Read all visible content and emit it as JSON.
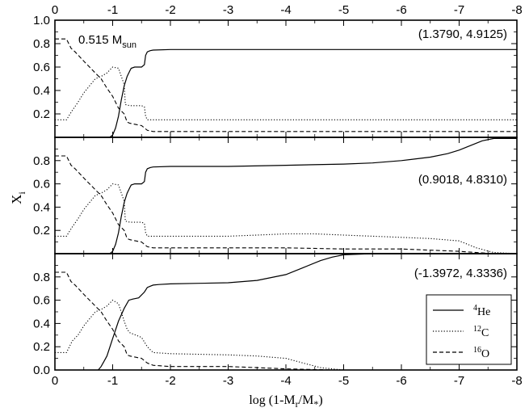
{
  "chart_data": {
    "type": "line",
    "xlabel": "log (1-M_r/M_*)",
    "ylabel": "X_i",
    "xlim": [
      0,
      -8
    ],
    "x_ticks": [
      "0",
      "-1",
      "-2",
      "-3",
      "-4",
      "-5",
      "-6",
      "-7",
      "-8"
    ],
    "top_axis_ticks": [
      "0",
      "-1",
      "-2",
      "-3",
      "-4",
      "-5",
      "-6",
      "-7",
      "-8"
    ],
    "legend": {
      "placement": "bottom-right of bottom panel",
      "entries": [
        {
          "sup": "4",
          "label": "He",
          "style": "solid"
        },
        {
          "sup": "12",
          "label": "C",
          "style": "dotted"
        },
        {
          "sup": "16",
          "label": "O",
          "style": "dashed"
        }
      ]
    },
    "panels": [
      {
        "mass_label": "0.515 M",
        "mass_label_sub": "sun",
        "annotation": "(1.3790, 4.9125)",
        "ylim": [
          0,
          1.0
        ],
        "y_ticks": [
          "1.0",
          "0.8",
          "0.6",
          "0.4",
          "0.2"
        ],
        "series": [
          {
            "name": "4He",
            "style": "solid",
            "x": [
              0.95,
              1.0,
              1.05,
              1.1,
              1.15,
              1.2,
              1.25,
              1.3,
              1.32,
              1.38,
              1.44,
              1.5,
              1.55,
              1.57,
              1.6,
              1.65,
              1.7,
              2.0,
              3.0,
              4.0,
              5.0,
              6.0,
              7.0,
              8.0
            ],
            "y": [
              0.0,
              0.02,
              0.08,
              0.18,
              0.32,
              0.44,
              0.52,
              0.57,
              0.59,
              0.6,
              0.6,
              0.6,
              0.62,
              0.7,
              0.73,
              0.74,
              0.745,
              0.75,
              0.75,
              0.75,
              0.75,
              0.75,
              0.75,
              0.75
            ]
          },
          {
            "name": "12C",
            "style": "dotted",
            "x": [
              0.0,
              0.2,
              0.3,
              0.4,
              0.5,
              0.6,
              0.7,
              0.8,
              0.9,
              1.0,
              1.1,
              1.2,
              1.22,
              1.3,
              1.4,
              1.5,
              1.55,
              1.57,
              1.6,
              1.7,
              2.0,
              3.0,
              4.0,
              5.0,
              6.0,
              7.0,
              8.0
            ],
            "y": [
              0.15,
              0.15,
              0.23,
              0.3,
              0.38,
              0.44,
              0.5,
              0.52,
              0.55,
              0.6,
              0.59,
              0.45,
              0.28,
              0.27,
              0.27,
              0.27,
              0.26,
              0.18,
              0.15,
              0.15,
              0.15,
              0.15,
              0.15,
              0.15,
              0.15,
              0.15,
              0.15
            ]
          },
          {
            "name": "16O",
            "style": "dashed",
            "x": [
              0.0,
              0.2,
              0.28,
              0.35,
              0.5,
              0.6,
              0.7,
              0.8,
              0.9,
              1.0,
              1.1,
              1.2,
              1.25,
              1.3,
              1.4,
              1.5,
              1.6,
              1.7,
              2.0,
              3.0,
              4.0,
              5.0,
              6.0,
              7.0,
              8.0
            ],
            "y": [
              0.84,
              0.84,
              0.76,
              0.73,
              0.65,
              0.6,
              0.55,
              0.5,
              0.42,
              0.35,
              0.25,
              0.2,
              0.13,
              0.12,
              0.11,
              0.1,
              0.06,
              0.05,
              0.05,
              0.05,
              0.05,
              0.05,
              0.05,
              0.05,
              0.05
            ]
          }
        ]
      },
      {
        "annotation": "(0.9018, 4.8310)",
        "ylim": [
          0,
          1.0
        ],
        "y_ticks": [
          "0.8",
          "0.6",
          "0.4",
          "0.2"
        ],
        "series": [
          {
            "name": "4He",
            "style": "solid",
            "x": [
              0.95,
              1.0,
              1.05,
              1.1,
              1.15,
              1.2,
              1.25,
              1.3,
              1.32,
              1.38,
              1.44,
              1.5,
              1.55,
              1.57,
              1.6,
              1.65,
              1.7,
              2.0,
              3.0,
              4.0,
              5.0,
              5.5,
              6.0,
              6.5,
              6.8,
              7.0,
              7.2,
              7.4,
              7.6,
              8.0
            ],
            "y": [
              0.0,
              0.02,
              0.08,
              0.18,
              0.32,
              0.44,
              0.52,
              0.57,
              0.59,
              0.6,
              0.6,
              0.6,
              0.62,
              0.7,
              0.73,
              0.74,
              0.745,
              0.75,
              0.75,
              0.76,
              0.77,
              0.78,
              0.8,
              0.83,
              0.86,
              0.89,
              0.93,
              0.97,
              0.99,
              0.99
            ]
          },
          {
            "name": "12C",
            "style": "dotted",
            "x": [
              0.0,
              0.2,
              0.3,
              0.4,
              0.5,
              0.6,
              0.7,
              0.8,
              0.9,
              1.0,
              1.1,
              1.2,
              1.22,
              1.3,
              1.4,
              1.5,
              1.55,
              1.57,
              1.6,
              1.7,
              2.0,
              3.0,
              3.5,
              4.0,
              4.5,
              5.0,
              5.5,
              6.0,
              6.5,
              7.0,
              7.3,
              7.6,
              8.0
            ],
            "y": [
              0.15,
              0.15,
              0.23,
              0.3,
              0.38,
              0.44,
              0.5,
              0.52,
              0.55,
              0.6,
              0.59,
              0.45,
              0.28,
              0.27,
              0.27,
              0.27,
              0.26,
              0.18,
              0.15,
              0.15,
              0.15,
              0.15,
              0.16,
              0.17,
              0.17,
              0.16,
              0.15,
              0.14,
              0.13,
              0.11,
              0.05,
              0.01,
              0.0
            ]
          },
          {
            "name": "16O",
            "style": "dashed",
            "x": [
              0.0,
              0.2,
              0.28,
              0.35,
              0.5,
              0.6,
              0.7,
              0.8,
              0.9,
              1.0,
              1.1,
              1.2,
              1.25,
              1.3,
              1.4,
              1.5,
              1.6,
              1.7,
              2.0,
              3.0,
              4.0,
              5.0,
              6.0,
              6.5,
              7.0,
              7.3,
              7.6,
              8.0
            ],
            "y": [
              0.84,
              0.84,
              0.76,
              0.73,
              0.65,
              0.6,
              0.55,
              0.5,
              0.42,
              0.35,
              0.25,
              0.2,
              0.13,
              0.12,
              0.11,
              0.1,
              0.06,
              0.05,
              0.05,
              0.05,
              0.05,
              0.04,
              0.04,
              0.03,
              0.02,
              0.01,
              0.0,
              0.0
            ]
          }
        ]
      },
      {
        "annotation": "(-1.3972, 4.3336)",
        "ylim": [
          0,
          1.0
        ],
        "y_ticks": [
          "0.8",
          "0.6",
          "0.4",
          "0.2",
          "0.0"
        ],
        "series": [
          {
            "name": "4He",
            "style": "solid",
            "x": [
              0.75,
              0.8,
              0.9,
              1.0,
              1.1,
              1.2,
              1.28,
              1.35,
              1.45,
              1.55,
              1.6,
              1.65,
              1.7,
              1.8,
              2.0,
              2.5,
              3.0,
              3.5,
              4.0,
              4.3,
              4.6,
              4.8,
              5.0,
              5.5,
              6.0,
              7.0,
              8.0
            ],
            "y": [
              0.0,
              0.03,
              0.12,
              0.27,
              0.42,
              0.53,
              0.6,
              0.61,
              0.62,
              0.67,
              0.71,
              0.72,
              0.73,
              0.735,
              0.74,
              0.745,
              0.75,
              0.77,
              0.82,
              0.88,
              0.94,
              0.97,
              0.99,
              1.0,
              1.0,
              1.0,
              1.0
            ]
          },
          {
            "name": "12C",
            "style": "dotted",
            "x": [
              0.0,
              0.2,
              0.3,
              0.4,
              0.5,
              0.6,
              0.7,
              0.8,
              0.9,
              1.0,
              1.1,
              1.2,
              1.25,
              1.3,
              1.4,
              1.5,
              1.6,
              1.7,
              2.0,
              3.0,
              3.5,
              4.0,
              4.3,
              4.6,
              4.8,
              5.0,
              5.5,
              8.0
            ],
            "y": [
              0.15,
              0.15,
              0.25,
              0.3,
              0.38,
              0.44,
              0.5,
              0.52,
              0.55,
              0.6,
              0.57,
              0.42,
              0.35,
              0.32,
              0.3,
              0.28,
              0.2,
              0.15,
              0.14,
              0.13,
              0.12,
              0.1,
              0.06,
              0.02,
              0.01,
              0.0,
              0.0,
              0.0
            ]
          },
          {
            "name": "16O",
            "style": "dashed",
            "x": [
              0.0,
              0.2,
              0.28,
              0.35,
              0.5,
              0.6,
              0.7,
              0.8,
              0.9,
              1.0,
              1.1,
              1.2,
              1.25,
              1.3,
              1.4,
              1.5,
              1.6,
              1.7,
              2.0,
              3.0,
              3.5,
              4.0,
              4.4,
              4.8,
              5.0,
              8.0
            ],
            "y": [
              0.84,
              0.84,
              0.76,
              0.73,
              0.65,
              0.6,
              0.55,
              0.5,
              0.42,
              0.35,
              0.25,
              0.2,
              0.13,
              0.12,
              0.11,
              0.1,
              0.06,
              0.04,
              0.03,
              0.03,
              0.02,
              0.01,
              0.005,
              0.0,
              0.0,
              0.0
            ]
          }
        ]
      }
    ]
  }
}
